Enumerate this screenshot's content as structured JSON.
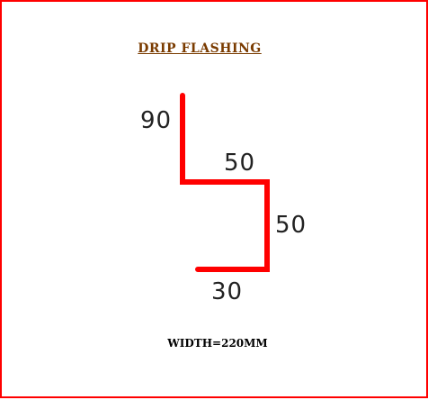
{
  "title": "DRIP FLASHING",
  "profile_color": "#ff0000",
  "frame_color": "#ff0000",
  "title_color": "#7a3b00",
  "dimensions": {
    "segment_1": "90",
    "segment_2": "50",
    "segment_3": "50",
    "segment_4": "30"
  },
  "width_note": "WIDTH=220MM"
}
